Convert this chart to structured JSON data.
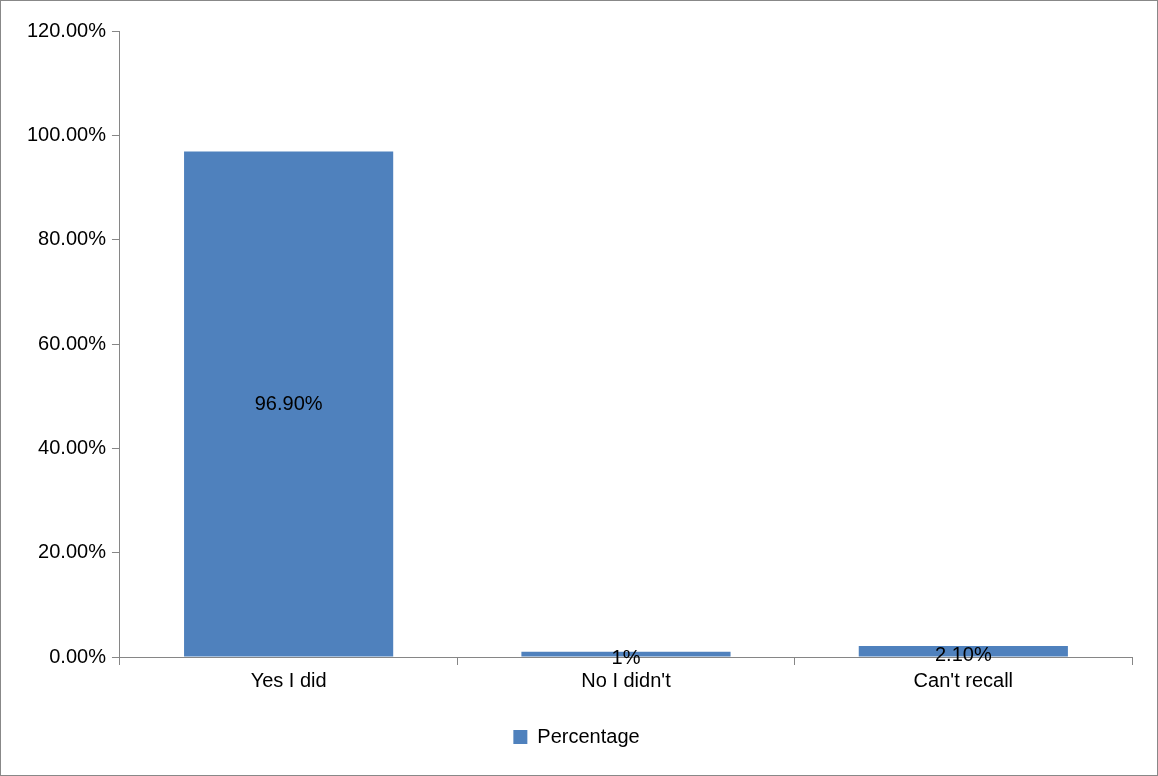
{
  "chart_data": {
    "type": "bar",
    "categories": [
      "Yes I did",
      "No I didn't",
      "Can't recall"
    ],
    "series": [
      {
        "name": "Percentage",
        "color": "#4f81bd",
        "values": [
          96.9,
          1,
          2.1
        ],
        "value_labels": [
          "96.90%",
          "1%",
          "2.10%"
        ]
      }
    ],
    "ylim": [
      0,
      120
    ],
    "yticks": [
      {
        "value": 0,
        "label": "0.00%"
      },
      {
        "value": 20,
        "label": "20.00%"
      },
      {
        "value": 40,
        "label": "40.00%"
      },
      {
        "value": 60,
        "label": "60.00%"
      },
      {
        "value": 80,
        "label": "80.00%"
      },
      {
        "value": 100,
        "label": "100.00%"
      },
      {
        "value": 120,
        "label": "120.00%"
      }
    ],
    "grid": false,
    "legend": "bottom"
  }
}
